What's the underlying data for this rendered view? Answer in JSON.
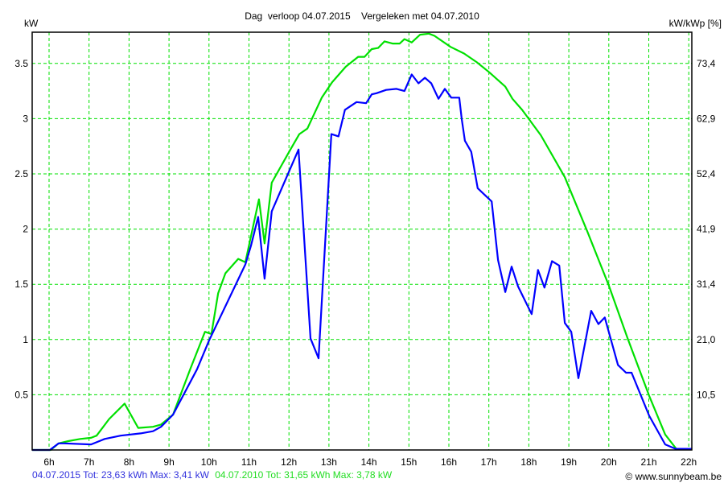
{
  "chart_data": {
    "type": "line",
    "title": "Dag  verloop 04.07.2015    Vergeleken met 04.07.2010",
    "ylabel": "kW",
    "ylabel_right": "kW/kWp [%]",
    "xlabel": "",
    "xlim": [
      5.58,
      22.08
    ],
    "ylim": [
      0,
      3.78
    ],
    "grid": true,
    "x_ticks": [
      6,
      7,
      8,
      9,
      10,
      11,
      12,
      13,
      14,
      15,
      16,
      17,
      18,
      19,
      20,
      21,
      22
    ],
    "x_tick_labels": [
      "6h",
      "7h",
      "8h",
      "9h",
      "10h",
      "11h",
      "12h",
      "13h",
      "14h",
      "15h",
      "16h",
      "17h",
      "18h",
      "19h",
      "20h",
      "21h",
      "22h"
    ],
    "y_ticks": [
      0.5,
      1,
      1.5,
      2,
      2.5,
      3,
      3.5
    ],
    "y_tick_labels": [
      "0.5",
      "1",
      "1.5",
      "2",
      "2.5",
      "3",
      "3.5"
    ],
    "y_right_tick_labels": [
      "10,5",
      "21,0",
      "31,4",
      "41,9",
      "52,4",
      "62,9",
      "73,4"
    ],
    "series": [
      {
        "name": "04.07.2015",
        "color": "#0000ff",
        "legend": "04.07.2015 Tot: 23,63 kWh Max: 3,41 kW",
        "x": [
          5.58,
          6.02,
          6.24,
          6.38,
          7.05,
          7.39,
          7.79,
          8.29,
          8.6,
          8.8,
          9.1,
          9.7,
          10.0,
          10.91,
          11.05,
          11.23,
          11.39,
          11.57,
          12.24,
          12.54,
          12.74,
          13.06,
          13.24,
          13.4,
          13.69,
          13.93,
          14.07,
          14.19,
          14.43,
          14.69,
          14.89,
          15.07,
          15.24,
          15.4,
          15.56,
          15.74,
          15.9,
          16.06,
          16.26,
          16.32,
          16.4,
          16.56,
          16.72,
          17.07,
          17.23,
          17.41,
          17.57,
          17.73,
          18.07,
          18.23,
          18.39,
          18.58,
          18.76,
          18.9,
          19.06,
          19.24,
          19.56,
          19.74,
          19.9,
          20.23,
          20.43,
          20.57,
          21.01,
          21.41,
          21.67,
          22.08
        ],
        "y": [
          0,
          0,
          0.06,
          0.06,
          0.05,
          0.1,
          0.13,
          0.15,
          0.17,
          0.21,
          0.32,
          0.73,
          0.99,
          1.68,
          1.85,
          2.11,
          1.55,
          2.16,
          2.72,
          1.01,
          0.83,
          2.86,
          2.84,
          3.08,
          3.15,
          3.14,
          3.22,
          3.23,
          3.26,
          3.27,
          3.25,
          3.4,
          3.32,
          3.37,
          3.32,
          3.18,
          3.27,
          3.19,
          3.19,
          3.0,
          2.8,
          2.7,
          2.37,
          2.25,
          1.72,
          1.43,
          1.66,
          1.48,
          1.23,
          1.63,
          1.47,
          1.71,
          1.67,
          1.15,
          1.07,
          0.65,
          1.26,
          1.14,
          1.2,
          0.77,
          0.7,
          0.7,
          0.31,
          0.05,
          0.01,
          0.01
        ]
      },
      {
        "name": "04.07.2010",
        "color": "#00e000",
        "legend": "04.07.2010 Tot: 31,65 kWh Max: 3,78 kW",
        "x": [
          5.58,
          6.04,
          6.24,
          6.48,
          6.78,
          7.05,
          7.19,
          7.5,
          7.89,
          8.23,
          8.6,
          8.8,
          9.1,
          9.54,
          9.9,
          10.06,
          10.23,
          10.41,
          10.73,
          10.91,
          11.25,
          11.39,
          11.57,
          12.02,
          12.26,
          12.46,
          12.82,
          13.08,
          13.42,
          13.73,
          13.89,
          14.07,
          14.23,
          14.39,
          14.59,
          14.77,
          14.89,
          15.07,
          15.28,
          15.5,
          15.64,
          16.04,
          16.38,
          16.7,
          17.01,
          17.41,
          17.59,
          17.83,
          18.3,
          18.9,
          19.46,
          20.0,
          20.47,
          21.01,
          21.41,
          21.71
        ],
        "y": [
          0,
          0,
          0.06,
          0.08,
          0.1,
          0.11,
          0.13,
          0.28,
          0.42,
          0.2,
          0.21,
          0.23,
          0.32,
          0.74,
          1.07,
          1.05,
          1.42,
          1.6,
          1.73,
          1.7,
          2.27,
          1.87,
          2.42,
          2.71,
          2.86,
          2.91,
          3.19,
          3.33,
          3.47,
          3.56,
          3.56,
          3.63,
          3.64,
          3.7,
          3.68,
          3.68,
          3.72,
          3.69,
          3.76,
          3.77,
          3.75,
          3.65,
          3.59,
          3.51,
          3.42,
          3.29,
          3.18,
          3.08,
          2.85,
          2.47,
          1.98,
          1.49,
          1.01,
          0.49,
          0.14,
          0
        ]
      }
    ],
    "legend_placement": "bottom-left"
  },
  "footer": {
    "copyright": "© www.sunnybeam.be"
  }
}
